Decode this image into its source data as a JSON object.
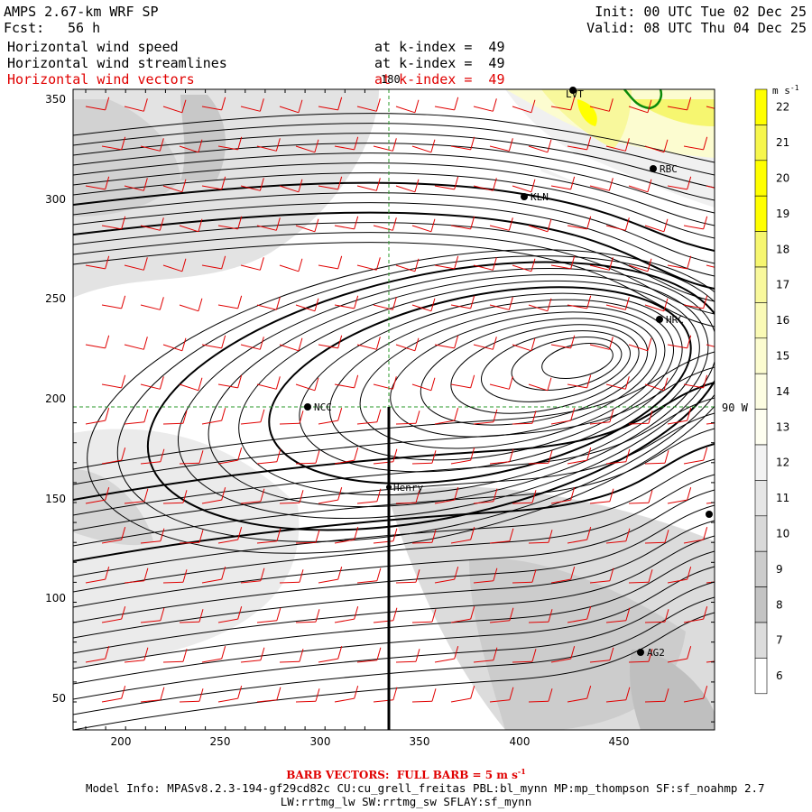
{
  "header": {
    "title": "AMPS 2.67-km WRF SP",
    "forecast_label": "Fcst:",
    "forecast_hours": "56 h",
    "init": "Init: 00 UTC Tue 02 Dec 25",
    "valid": "Valid: 08 UTC Thu 04 Dec 25",
    "fields": [
      {
        "name": "Horizontal wind speed",
        "level": "at k-index =  49",
        "color": "#000000"
      },
      {
        "name": "Horizontal wind streamlines",
        "level": "at k-index =  49",
        "color": "#000000"
      },
      {
        "name": "Horizontal wind vectors",
        "level": "at k-index =  49",
        "color": "#e00000"
      }
    ]
  },
  "map": {
    "x_ticks": [
      "200",
      "250",
      "300",
      "350",
      "400",
      "450"
    ],
    "y_ticks": [
      "50",
      "100",
      "150",
      "200",
      "250",
      "300",
      "350"
    ],
    "meridian_label": "180",
    "parallel_label": "90 W",
    "stations": [
      {
        "name": "LVT"
      },
      {
        "name": "RBC"
      },
      {
        "name": "KLN"
      },
      {
        "name": "HRC"
      },
      {
        "name": "NCC"
      },
      {
        "name": "Henry"
      },
      {
        "name": "AG2"
      }
    ]
  },
  "colorbar": {
    "units": "m s",
    "units_exp": "-1",
    "levels": [
      "22",
      "21",
      "20",
      "19",
      "18",
      "17",
      "16",
      "15",
      "14",
      "13",
      "12",
      "11",
      "10",
      "9",
      "8",
      "7",
      "6"
    ],
    "colors": [
      "#ffff00",
      "#f6f64d",
      "#ffff00",
      "#ffff00",
      "#f6f670",
      "#f8f89c",
      "#fafab6",
      "#fcfcd0",
      "#fdfde2",
      "#fefef0",
      "#f3f3f3",
      "#e6e6e6",
      "#d9d9d9",
      "#cccccc",
      "#c3c3c3",
      "#dcdcdc",
      "#ffffff"
    ]
  },
  "footer": {
    "barb_note": "BARB VECTORS:  FULL BARB = 5 m s",
    "barb_exp": "-1",
    "model_info": "Model Info: MPASv8.2.3-194-gf29cd82c CU:cu_grell_freitas PBL:bl_mynn MP:mp_thompson SF:sf_noahmp 2.7",
    "model_info_2": "LW:rrtmg_lw SW:rrtmg_sw SFLAY:sf_mynn"
  }
}
